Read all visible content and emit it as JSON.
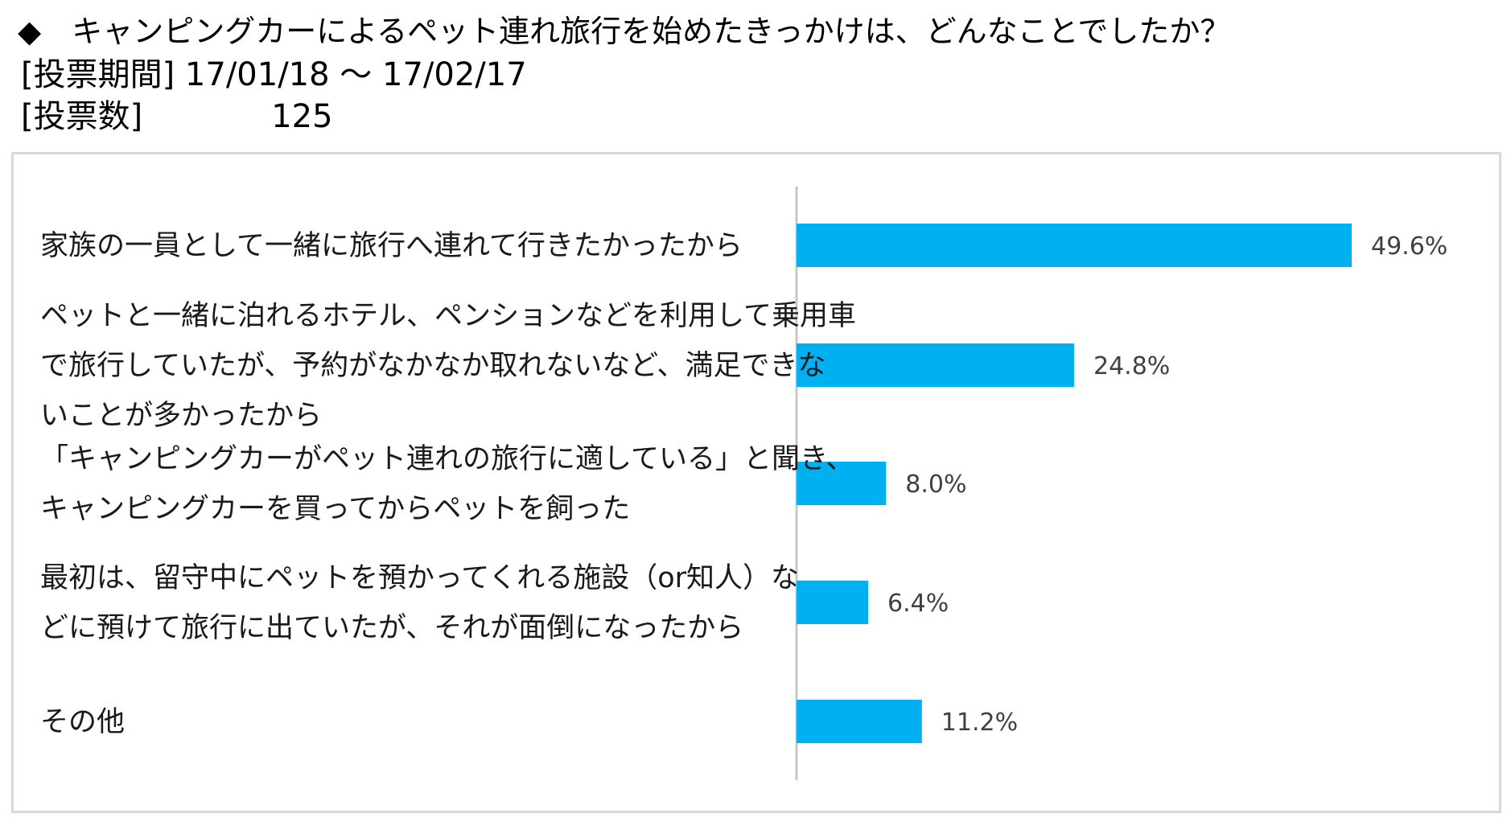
{
  "header": {
    "question": "◆　キャンピングカーによるペット連れ旅行を始めたきっかけは、どんなことでしたか？",
    "period": "[投票期間] 17/01/18 ～ 17/02/17",
    "votes": "[投票数]　　　　125"
  },
  "colors": {
    "bar": "#00b0f0",
    "axis": "#c8c8c8",
    "frame": "#d9d9d9"
  },
  "chart_data": {
    "type": "bar",
    "orientation": "horizontal",
    "categories": [
      [
        "家族の一員として一緒に旅行へ連れて行きたかったから"
      ],
      [
        "ペットと一緒に泊れるホテル、ペンションなどを利用して乗用車",
        "で旅行していたが、予約がなかなか取れないなど、満足できな",
        "いことが多かったから"
      ],
      [
        "「キャンピングカーがペット連れの旅行に適している」と聞き、",
        "キャンピングカーを買ってからペットを飼った"
      ],
      [
        "最初は、留守中にペットを預かってくれる施設（or知人）な",
        "どに預けて旅行に出ていたが、それが面倒になったから"
      ],
      [
        "その他"
      ]
    ],
    "values": [
      49.6,
      24.8,
      8.0,
      6.4,
      11.2
    ],
    "labels": [
      "49.6%",
      "24.8%",
      "8.0%",
      "6.4%",
      "11.2%"
    ],
    "xlim": [
      0,
      60
    ],
    "grid": false,
    "legend": "none"
  }
}
